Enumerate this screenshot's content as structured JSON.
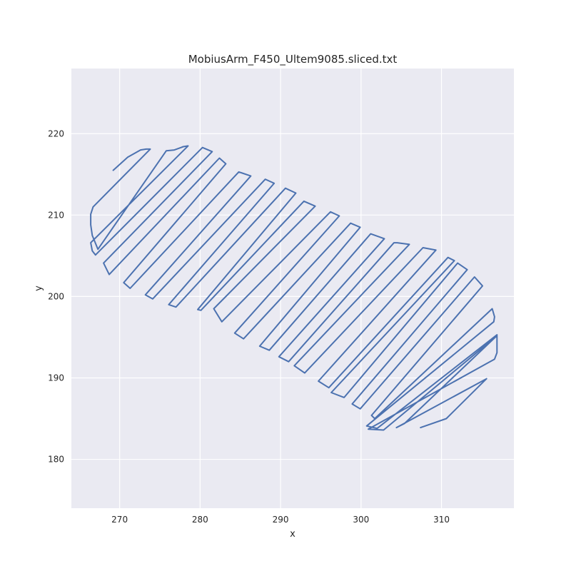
{
  "chart_data": {
    "type": "line",
    "title": "MobiusArm_F450_Ultem9085.sliced.txt",
    "xlabel": "x",
    "ylabel": "y",
    "xlim": [
      264.0,
      319.0
    ],
    "ylim": [
      174.0,
      228.0
    ],
    "xticks": [
      270,
      280,
      290,
      300,
      310
    ],
    "yticks": [
      180,
      190,
      200,
      210,
      220
    ],
    "xtick_labels": [
      "270",
      "280",
      "290",
      "300",
      "310"
    ],
    "ytick_labels": [
      "180",
      "190",
      "200",
      "210",
      "220"
    ],
    "grid": true,
    "background": "#eaeaf2",
    "grid_color": "#ffffff",
    "series": [
      {
        "color": "#4c72b0",
        "x": [
          269.2,
          271.0,
          272.6,
          273.3,
          273.8,
          266.7,
          266.4,
          266.4,
          266.6,
          267.3,
          275.8,
          276.8,
          277.9,
          278.5,
          266.4,
          266.6,
          267.0,
          280.3,
          281.5,
          268.0,
          268.7,
          282.4,
          283.2,
          270.5,
          271.3,
          284.8,
          285.1,
          286.3,
          273.2,
          274.1,
          288.1,
          289.2,
          276.1,
          277.0,
          290.6,
          291.9,
          279.7,
          280.1,
          292.9,
          294.3,
          281.7,
          282.7,
          296.2,
          297.3,
          284.3,
          285.4,
          298.7,
          299.9,
          287.4,
          288.6,
          301.2,
          302.9,
          289.8,
          291.0,
          304.1,
          304.5,
          306.0,
          291.7,
          293.0,
          307.7,
          309.3,
          294.7,
          296.0,
          310.8,
          311.6,
          296.3,
          297.9,
          312.0,
          313.2,
          298.9,
          299.9,
          314.1,
          315.1,
          301.3,
          301.7,
          316.3,
          316.6,
          316.5,
          300.7,
          302.0,
          316.9,
          316.9,
          316.6,
          300.9,
          302.8,
          316.8,
          305.4,
          304.4,
          315.6,
          310.6,
          307.4
        ],
        "y": [
          215.5,
          217.1,
          218.0,
          218.1,
          218.1,
          211.0,
          210.1,
          208.8,
          207.5,
          205.8,
          217.9,
          218.0,
          218.4,
          218.5,
          206.6,
          205.6,
          205.1,
          218.3,
          217.8,
          204.1,
          202.7,
          217.0,
          216.3,
          201.7,
          201.0,
          215.3,
          215.2,
          214.8,
          200.2,
          199.7,
          214.4,
          213.9,
          199.0,
          198.7,
          213.3,
          212.7,
          198.4,
          198.3,
          211.7,
          211.1,
          198.5,
          196.9,
          210.4,
          209.9,
          195.5,
          194.8,
          209.0,
          208.5,
          193.9,
          193.4,
          207.7,
          207.1,
          192.6,
          192.0,
          206.6,
          206.6,
          206.4,
          191.5,
          190.6,
          206.0,
          205.7,
          189.6,
          188.8,
          204.8,
          204.4,
          188.2,
          187.6,
          204.1,
          203.3,
          186.8,
          186.2,
          202.4,
          201.3,
          185.4,
          185.0,
          198.5,
          197.5,
          196.9,
          184.1,
          183.8,
          195.3,
          193.1,
          192.3,
          183.7,
          183.6,
          195.1,
          184.4,
          183.9,
          189.9,
          185.0,
          183.9
        ]
      }
    ]
  }
}
